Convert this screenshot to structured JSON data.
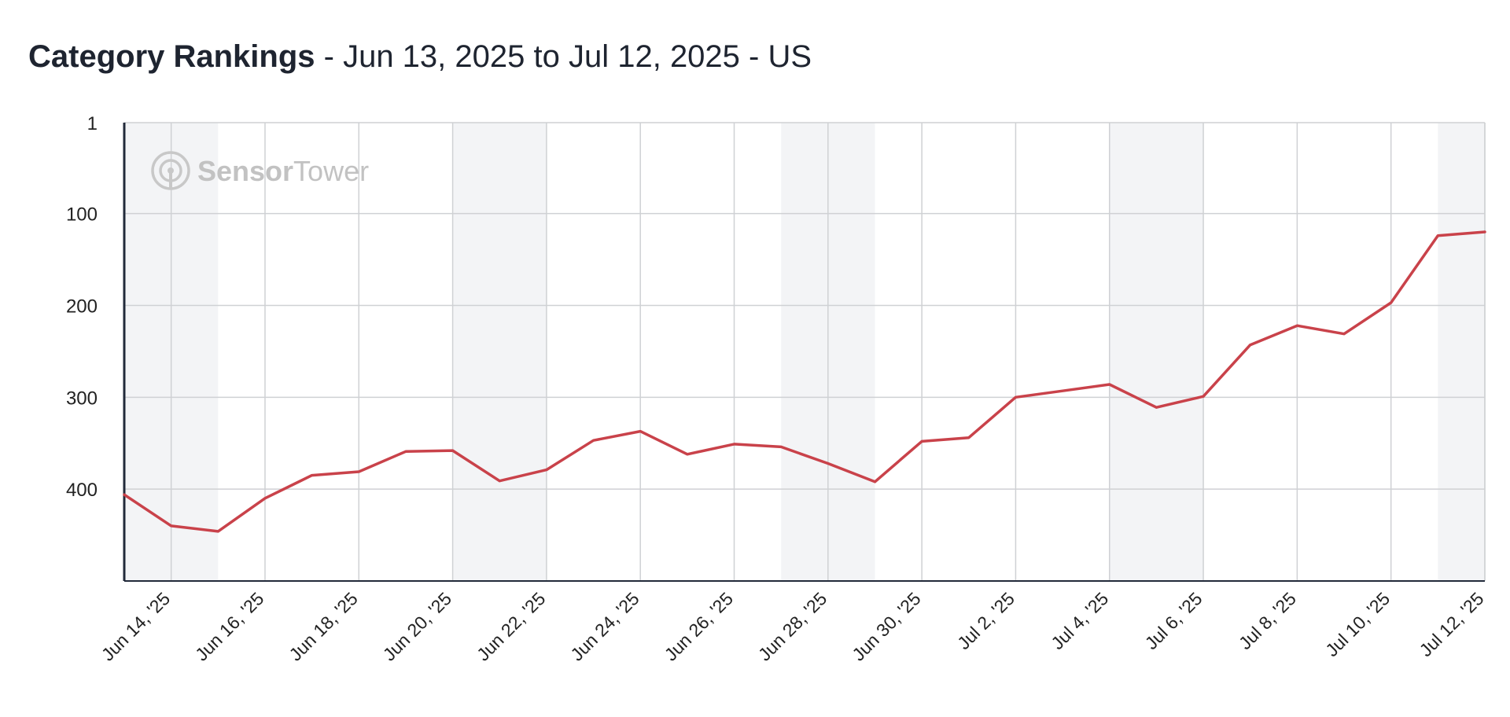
{
  "header": {
    "title": "Category Rankings",
    "subtitle": " - Jun 13, 2025 to Jul 12, 2025 - US"
  },
  "watermark": {
    "brand_part1": "Sensor",
    "brand_part2": "Tower",
    "icon": "sensor-tower-logo-icon"
  },
  "colors": {
    "line": "#c9424a",
    "weekend_band": "#f3f4f6",
    "grid": "#cfd1d4",
    "axis": "#222a3a"
  },
  "chart_data": {
    "type": "line",
    "title": "Category Rankings",
    "xlabel": "",
    "ylabel": "",
    "y_reversed": true,
    "ylim": [
      1,
      500
    ],
    "yticks": [
      1,
      100,
      200,
      300,
      400
    ],
    "grid": true,
    "x_start": "2025-06-13",
    "x_end": "2025-07-12",
    "x_tick_labels": [
      "Jun 14, '25",
      "Jun 16, '25",
      "Jun 18, '25",
      "Jun 20, '25",
      "Jun 22, '25",
      "Jun 24, '25",
      "Jun 26, '25",
      "Jun 28, '25",
      "Jun 30, '25",
      "Jul 2, '25",
      "Jul 4, '25",
      "Jul 6, '25",
      "Jul 8, '25",
      "Jul 10, '25",
      "Jul 12, '25"
    ],
    "weekend_bands": [
      [
        "2025-06-13",
        "2025-06-15"
      ],
      [
        "2025-06-20",
        "2025-06-22"
      ],
      [
        "2025-06-27",
        "2025-06-29"
      ],
      [
        "2025-07-04",
        "2025-07-06"
      ],
      [
        "2025-07-11",
        "2025-07-12"
      ]
    ],
    "series": [
      {
        "x": [
          "2025-06-13",
          "2025-06-14",
          "2025-06-15",
          "2025-06-16",
          "2025-06-17",
          "2025-06-18",
          "2025-06-19",
          "2025-06-20",
          "2025-06-21",
          "2025-06-22",
          "2025-06-23",
          "2025-06-24",
          "2025-06-25",
          "2025-06-26",
          "2025-06-27",
          "2025-06-28",
          "2025-06-29",
          "2025-06-30",
          "2025-07-01",
          "2025-07-02",
          "2025-07-03",
          "2025-07-04",
          "2025-07-05",
          "2025-07-06",
          "2025-07-07",
          "2025-07-08",
          "2025-07-09",
          "2025-07-10",
          "2025-07-11",
          "2025-07-12"
        ],
        "values": [
          406,
          440,
          446,
          410,
          385,
          381,
          359,
          358,
          391,
          379,
          347,
          337,
          362,
          351,
          354,
          372,
          392,
          348,
          344,
          300,
          293,
          286,
          311,
          299,
          243,
          222,
          231,
          197,
          124,
          120
        ]
      }
    ]
  }
}
